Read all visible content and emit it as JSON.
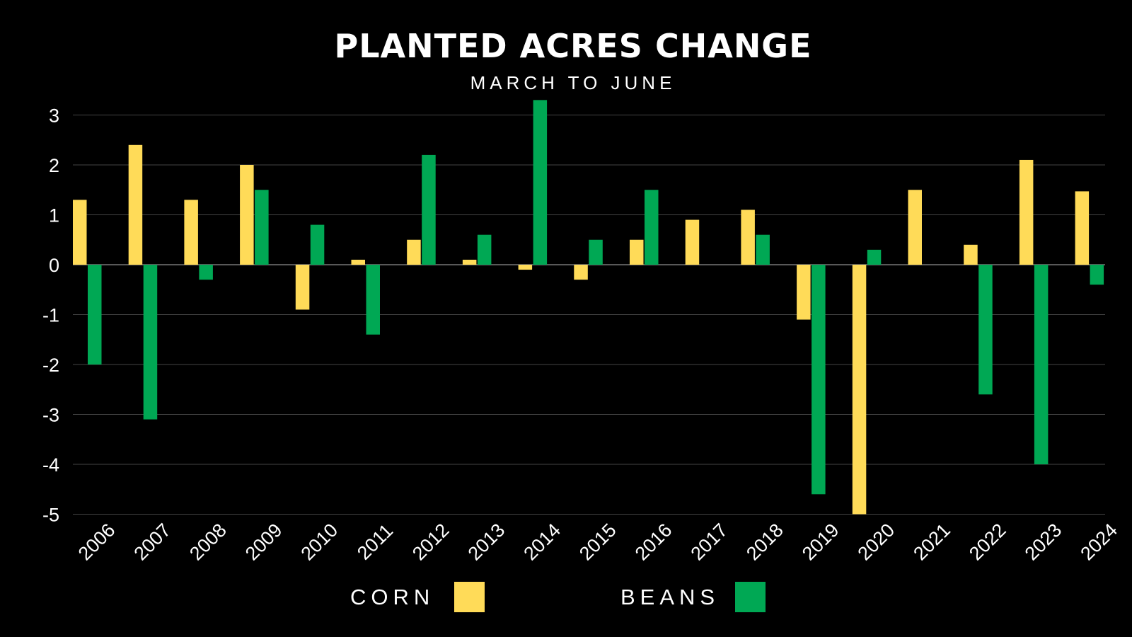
{
  "title": "PLANTED ACRES CHANGE",
  "subtitle": "MARCH TO JUNE",
  "legend": {
    "corn_label": "CORN",
    "beans_label": "BEANS"
  },
  "colors": {
    "background": "#000000",
    "corn": "#FFDB58",
    "beans": "#00A854",
    "grid": "#444444",
    "text": "#FFFFFF"
  },
  "chart_data": {
    "type": "bar",
    "title": "PLANTED ACRES CHANGE",
    "subtitle": "MARCH TO JUNE",
    "xlabel": "",
    "ylabel": "",
    "ylim": [
      -5,
      3
    ],
    "yticks": [
      "3",
      "2",
      "1",
      "0",
      "-1",
      "-2",
      "-3",
      "-4",
      "-5"
    ],
    "grid": true,
    "legend_position": "bottom",
    "categories": [
      "2006",
      "2007",
      "2008",
      "2009",
      "2010",
      "2011",
      "2012",
      "2013",
      "2014",
      "2015",
      "2016",
      "2017",
      "2018",
      "2019",
      "2020",
      "2021",
      "2022",
      "2023",
      "2024"
    ],
    "series": [
      {
        "name": "CORN",
        "color": "#FFDB58",
        "values": [
          1.3,
          2.4,
          1.3,
          2.0,
          -0.9,
          0.1,
          0.5,
          0.1,
          -0.1,
          -0.3,
          0.5,
          0.9,
          1.1,
          -1.1,
          -5.0,
          1.5,
          0.4,
          2.1,
          1.47
        ]
      },
      {
        "name": "BEANS",
        "color": "#00A854",
        "values": [
          -2.0,
          -3.1,
          -0.3,
          1.5,
          0.8,
          -1.4,
          2.2,
          0.6,
          3.3,
          0.5,
          1.5,
          0.0,
          0.6,
          -4.6,
          0.3,
          0.0,
          -2.6,
          -4.0,
          -0.4
        ]
      }
    ]
  }
}
